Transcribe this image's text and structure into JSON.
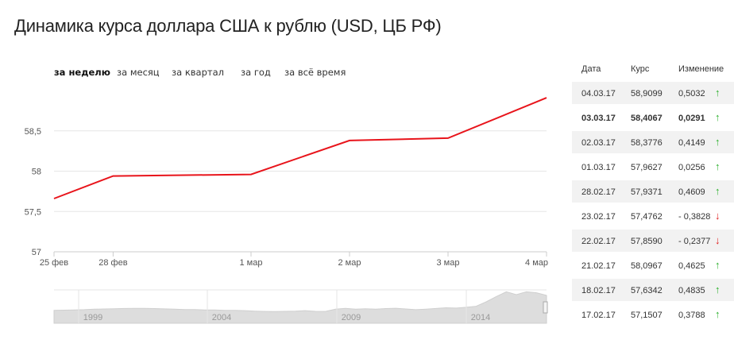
{
  "page": {
    "title": "Динамика курса доллара США к рублю (USD, ЦБ РФ)"
  },
  "periods": [
    {
      "label": "за неделю",
      "active": true
    },
    {
      "label": "за месяц",
      "active": false
    },
    {
      "label": "за квартал",
      "active": false
    },
    {
      "label": "за год",
      "active": false
    },
    {
      "label": "за всё время",
      "active": false
    }
  ],
  "table": {
    "headers": {
      "date": "Дата",
      "rate": "Курс",
      "change": "Изменение"
    },
    "rows": [
      {
        "date": "04.03.17",
        "rate": "58,9099",
        "change": "0,5032",
        "dir": "up",
        "bold": false
      },
      {
        "date": "03.03.17",
        "rate": "58,4067",
        "change": "0,0291",
        "dir": "up",
        "bold": true
      },
      {
        "date": "02.03.17",
        "rate": "58,3776",
        "change": "0,4149",
        "dir": "up",
        "bold": false
      },
      {
        "date": "01.03.17",
        "rate": "57,9627",
        "change": "0,0256",
        "dir": "up",
        "bold": false
      },
      {
        "date": "28.02.17",
        "rate": "57,9371",
        "change": "0,4609",
        "dir": "up",
        "bold": false
      },
      {
        "date": "23.02.17",
        "rate": "57,4762",
        "change": "- 0,3828",
        "dir": "down",
        "bold": false
      },
      {
        "date": "22.02.17",
        "rate": "57,8590",
        "change": "- 0,2377",
        "dir": "down",
        "bold": false
      },
      {
        "date": "21.02.17",
        "rate": "58,0967",
        "change": "0,4625",
        "dir": "up",
        "bold": false
      },
      {
        "date": "18.02.17",
        "rate": "57,6342",
        "change": "0,4835",
        "dir": "up",
        "bold": false
      },
      {
        "date": "17.02.17",
        "rate": "57,1507",
        "change": "0,3788",
        "dir": "up",
        "bold": false
      }
    ],
    "arrows": {
      "up": "↑",
      "down": "↓"
    }
  },
  "colors": {
    "line": "#e8141b",
    "grid": "#e6e6e6",
    "up": "#2bb02b",
    "down": "#e02020",
    "navigator_fill": "#dddddd"
  },
  "chart_data": {
    "type": "line",
    "x": [
      "25 фев",
      "28 фев",
      "1 мар",
      "2 мар",
      "3 мар",
      "4 мар"
    ],
    "x_days": [
      0,
      0.6,
      2,
      3,
      4,
      5
    ],
    "series": [
      {
        "values": [
          57.66,
          57.94,
          57.96,
          58.38,
          58.41,
          58.91
        ]
      }
    ],
    "y_ticks": [
      "57",
      "57,5",
      "58",
      "58,5"
    ],
    "y_tick_values": [
      57,
      57.5,
      58,
      58.5
    ],
    "ylim": [
      57,
      59
    ],
    "grid": true,
    "navigator": {
      "labels": [
        "1999",
        "2004",
        "2009",
        "2014"
      ],
      "series": [
        27,
        27.5,
        28,
        28.5,
        29.5,
        30,
        30.5,
        31,
        31.3,
        31.2,
        30.8,
        30.2,
        29.5,
        28.8,
        28.6,
        28,
        27.8,
        27.2,
        27,
        26.5,
        25.5,
        24.8,
        24.5,
        25,
        25.5,
        26.5,
        25,
        24.8,
        29.5,
        31.2,
        29.5,
        30.5,
        29.6,
        30.8,
        31.5,
        30,
        28.5,
        29.6,
        31,
        32.5,
        31.8,
        33.5,
        35.6,
        45,
        56,
        66,
        60,
        66,
        64,
        58.5
      ]
    }
  }
}
